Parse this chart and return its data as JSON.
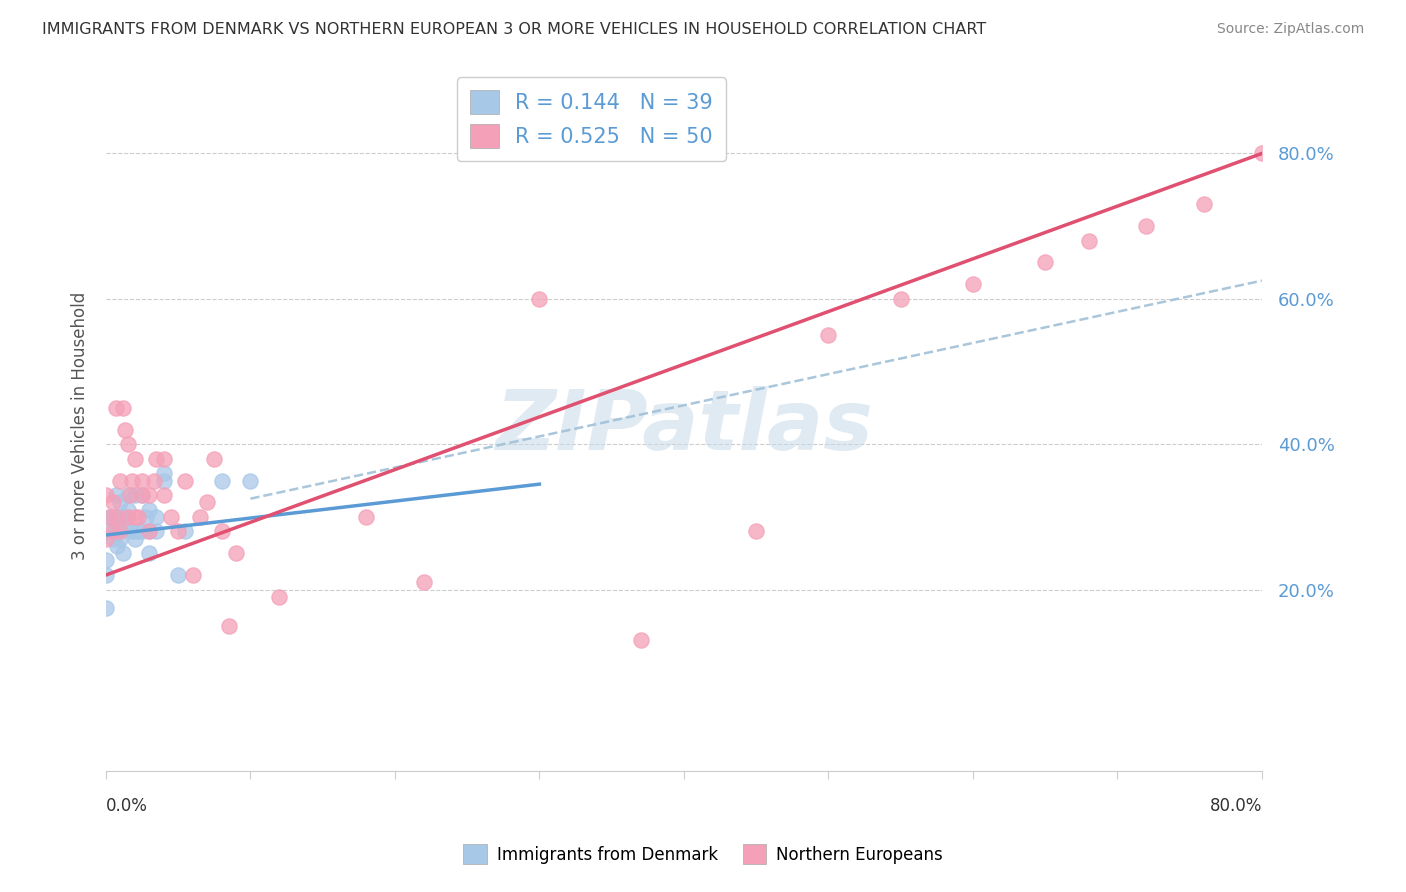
{
  "title": "IMMIGRANTS FROM DENMARK VS NORTHERN EUROPEAN 3 OR MORE VEHICLES IN HOUSEHOLD CORRELATION CHART",
  "source": "Source: ZipAtlas.com",
  "ylabel": "3 or more Vehicles in Household",
  "xlim": [
    0,
    0.8
  ],
  "ylim": [
    -0.05,
    0.9
  ],
  "yticks": [
    0.0,
    0.2,
    0.4,
    0.6,
    0.8
  ],
  "ytick_labels": [
    "",
    "20.0%",
    "40.0%",
    "60.0%",
    "80.0%"
  ],
  "watermark_text": "ZIPatlas",
  "blue_scatter_color": "#a8c8e8",
  "pink_scatter_color": "#f4a0b8",
  "blue_line_color": "#5b9bd5",
  "pink_line_color": "#e05070",
  "dash_line_color": "#a0c0d8",
  "legend_R1": "R = 0.144",
  "legend_N1": "N = 39",
  "legend_R2": "R = 0.525",
  "legend_N2": "N = 50",
  "blue_line_x0": 0.0,
  "blue_line_y0": 0.275,
  "blue_line_x1": 0.3,
  "blue_line_y1": 0.345,
  "pink_line_x0": 0.0,
  "pink_line_y0": 0.22,
  "pink_line_x1": 0.8,
  "pink_line_y1": 0.8,
  "dash_line_x0": 0.1,
  "dash_line_y0": 0.325,
  "dash_line_x1": 0.8,
  "dash_line_y1": 0.625,
  "blue_points_x": [
    0.0,
    0.0,
    0.0,
    0.002,
    0.003,
    0.005,
    0.005,
    0.007,
    0.007,
    0.008,
    0.008,
    0.009,
    0.01,
    0.01,
    0.01,
    0.012,
    0.013,
    0.014,
    0.015,
    0.015,
    0.015,
    0.018,
    0.02,
    0.02,
    0.022,
    0.025,
    0.025,
    0.028,
    0.03,
    0.03,
    0.03,
    0.035,
    0.035,
    0.04,
    0.04,
    0.05,
    0.055,
    0.08,
    0.1
  ],
  "blue_points_y": [
    0.175,
    0.22,
    0.24,
    0.3,
    0.28,
    0.27,
    0.3,
    0.28,
    0.33,
    0.26,
    0.3,
    0.28,
    0.27,
    0.3,
    0.32,
    0.25,
    0.3,
    0.3,
    0.28,
    0.31,
    0.33,
    0.28,
    0.27,
    0.33,
    0.28,
    0.28,
    0.33,
    0.3,
    0.25,
    0.28,
    0.31,
    0.3,
    0.28,
    0.35,
    0.36,
    0.22,
    0.28,
    0.35,
    0.35
  ],
  "pink_points_x": [
    0.0,
    0.0,
    0.003,
    0.005,
    0.005,
    0.007,
    0.008,
    0.01,
    0.01,
    0.012,
    0.013,
    0.015,
    0.015,
    0.017,
    0.018,
    0.02,
    0.02,
    0.022,
    0.025,
    0.025,
    0.03,
    0.03,
    0.033,
    0.035,
    0.04,
    0.04,
    0.045,
    0.05,
    0.055,
    0.06,
    0.065,
    0.07,
    0.075,
    0.08,
    0.085,
    0.09,
    0.12,
    0.18,
    0.22,
    0.3,
    0.37,
    0.45,
    0.5,
    0.55,
    0.6,
    0.65,
    0.68,
    0.72,
    0.76,
    0.8
  ],
  "pink_points_y": [
    0.27,
    0.33,
    0.3,
    0.28,
    0.32,
    0.45,
    0.3,
    0.28,
    0.35,
    0.45,
    0.42,
    0.3,
    0.4,
    0.33,
    0.35,
    0.3,
    0.38,
    0.3,
    0.33,
    0.35,
    0.28,
    0.33,
    0.35,
    0.38,
    0.33,
    0.38,
    0.3,
    0.28,
    0.35,
    0.22,
    0.3,
    0.32,
    0.38,
    0.28,
    0.15,
    0.25,
    0.19,
    0.3,
    0.21,
    0.6,
    0.13,
    0.28,
    0.55,
    0.6,
    0.62,
    0.65,
    0.68,
    0.7,
    0.73,
    0.8
  ]
}
